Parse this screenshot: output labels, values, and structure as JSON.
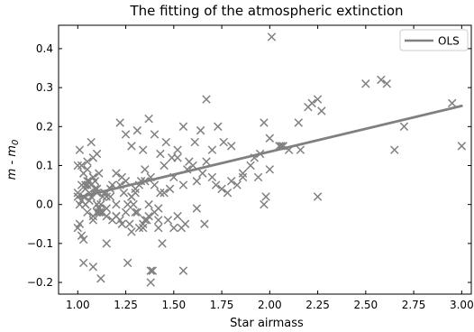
{
  "chart_data": {
    "type": "scatter",
    "title": "The fitting of the atmospheric extinction",
    "xlabel": "Star airmass",
    "ylabel": "m - m0",
    "ylabel_main": "m - m",
    "ylabel_sub": "0",
    "xlim": [
      0.9,
      3.05
    ],
    "ylim": [
      -0.23,
      0.46
    ],
    "xticks": [
      1.0,
      1.25,
      1.5,
      1.75,
      2.0,
      2.25,
      2.5,
      2.75,
      3.0
    ],
    "xtick_labels": [
      "1.00",
      "1.25",
      "1.50",
      "1.75",
      "2.00",
      "2.25",
      "2.50",
      "2.75",
      "3.00"
    ],
    "yticks": [
      -0.2,
      -0.1,
      0.0,
      0.1,
      0.2,
      0.3,
      0.4
    ],
    "ytick_labels": [
      "−0.2",
      "−0.1",
      "0.0",
      "0.1",
      "0.2",
      "0.3",
      "0.4"
    ],
    "legend": {
      "position": "top-right",
      "entries": [
        "OLS"
      ]
    },
    "colors": {
      "points": "#808080",
      "fit_line": "#808080"
    },
    "series": [
      {
        "marker": "x",
        "x": [
          1.0,
          1.0,
          1.01,
          1.01,
          1.02,
          1.02,
          1.03,
          1.03,
          1.04,
          1.05,
          1.06,
          1.07,
          1.07,
          1.08,
          1.08,
          1.09,
          1.1,
          1.1,
          1.11,
          1.12,
          1.01,
          1.02,
          1.04,
          1.05,
          1.06,
          1.07,
          1.09,
          1.1,
          1.11,
          1.13,
          1.15,
          1.17,
          1.2,
          1.22,
          1.24,
          1.26,
          1.28,
          1.3,
          1.32,
          1.35,
          1.0,
          1.03,
          1.05,
          1.08,
          1.1,
          1.13,
          1.15,
          1.18,
          1.2,
          1.23,
          1.25,
          1.28,
          1.3,
          1.33,
          1.35,
          1.38,
          1.4,
          1.43,
          1.45,
          1.48,
          1.0,
          1.02,
          1.04,
          1.06,
          1.08,
          1.1,
          1.12,
          1.15,
          1.17,
          1.2,
          1.22,
          1.25,
          1.27,
          1.3,
          1.32,
          1.35,
          1.37,
          1.4,
          1.42,
          1.45,
          1.03,
          1.05,
          1.08,
          1.1,
          1.12,
          1.15,
          1.18,
          1.2,
          1.23,
          1.26,
          1.28,
          1.31,
          1.34,
          1.36,
          1.39,
          1.42,
          1.44,
          1.47,
          1.5,
          1.52,
          1.22,
          1.25,
          1.28,
          1.31,
          1.34,
          1.37,
          1.4,
          1.43,
          1.46,
          1.49,
          1.52,
          1.55,
          1.58,
          1.61,
          1.64,
          1.67,
          1.7,
          1.73,
          1.76,
          1.8,
          1.5,
          1.52,
          1.55,
          1.57,
          1.6,
          1.62,
          1.65,
          1.67,
          1.7,
          1.72,
          1.75,
          1.78,
          1.8,
          1.83,
          1.86,
          1.9,
          1.92,
          1.95,
          1.97,
          2.0,
          2.0,
          2.05,
          2.07,
          2.1,
          2.15,
          2.16,
          2.2,
          2.22,
          2.25,
          2.27,
          2.5,
          2.58,
          2.61,
          2.65,
          2.7,
          2.95,
          3.0,
          2.01,
          2.25,
          1.55,
          1.05,
          1.08,
          1.04,
          1.14,
          1.11,
          1.29,
          1.38,
          1.38,
          1.42,
          1.54,
          1.34,
          1.37,
          1.56,
          1.66,
          1.62,
          1.86,
          1.97,
          1.94,
          1.98,
          2.06
        ],
        "y": [
          0.03,
          -0.06,
          0.14,
          -0.05,
          0.05,
          -0.08,
          0.02,
          -0.09,
          0.0,
          0.05,
          0.06,
          0.16,
          0.02,
          0.07,
          -0.04,
          0.04,
          0.13,
          0.0,
          0.08,
          -0.02,
          0.0,
          0.1,
          0.04,
          0.09,
          0.01,
          0.05,
          0.06,
          0.03,
          -0.01,
          0.02,
          -0.03,
          0.04,
          0.0,
          0.05,
          0.03,
          0.0,
          0.02,
          0.04,
          0.05,
          0.06,
          0.1,
          0.08,
          0.11,
          0.12,
          -0.02,
          -0.02,
          0.02,
          0.05,
          0.08,
          0.07,
          0.06,
          0.02,
          0.03,
          0.06,
          0.09,
          0.07,
          0.05,
          0.03,
          0.1,
          0.04,
          0.02,
          0.01,
          0.05,
          0.03,
          0.07,
          0.04,
          0.0,
          -0.01,
          0.02,
          -0.03,
          -0.04,
          -0.02,
          -0.05,
          -0.02,
          -0.06,
          -0.04,
          0.0,
          -0.02,
          -0.01,
          0.03,
          -0.15,
          0.06,
          -0.16,
          -0.02,
          -0.19,
          -0.1,
          -0.04,
          -0.03,
          -0.05,
          -0.15,
          -0.07,
          -0.02,
          -0.06,
          -0.04,
          -0.17,
          -0.06,
          -0.1,
          -0.04,
          -0.06,
          -0.03,
          0.21,
          0.18,
          0.15,
          0.19,
          0.14,
          0.22,
          0.18,
          0.13,
          0.16,
          0.12,
          0.14,
          0.2,
          0.11,
          0.16,
          0.19,
          0.27,
          0.14,
          0.2,
          0.16,
          0.15,
          0.07,
          0.12,
          0.05,
          0.09,
          0.1,
          0.06,
          0.08,
          0.11,
          0.07,
          0.05,
          0.04,
          0.03,
          0.06,
          0.05,
          0.07,
          0.1,
          0.12,
          0.13,
          0.21,
          0.17,
          0.09,
          0.15,
          0.15,
          0.14,
          0.21,
          0.14,
          0.25,
          0.26,
          0.27,
          0.24,
          0.31,
          0.32,
          0.31,
          0.14,
          0.2,
          0.26,
          0.15,
          0.43,
          0.02,
          -0.17,
          -0.02,
          -0.03,
          0.0,
          0.03,
          -0.02,
          0.0,
          -0.2,
          -0.17,
          -0.04,
          -0.06,
          -0.05,
          -0.03,
          -0.05,
          -0.05,
          -0.01,
          0.08,
          0.0,
          0.07,
          0.02,
          0.15
        ]
      }
    ],
    "fit_line": {
      "name": "OLS",
      "x": [
        1.0,
        3.0
      ],
      "y": [
        0.018,
        0.253
      ]
    }
  }
}
